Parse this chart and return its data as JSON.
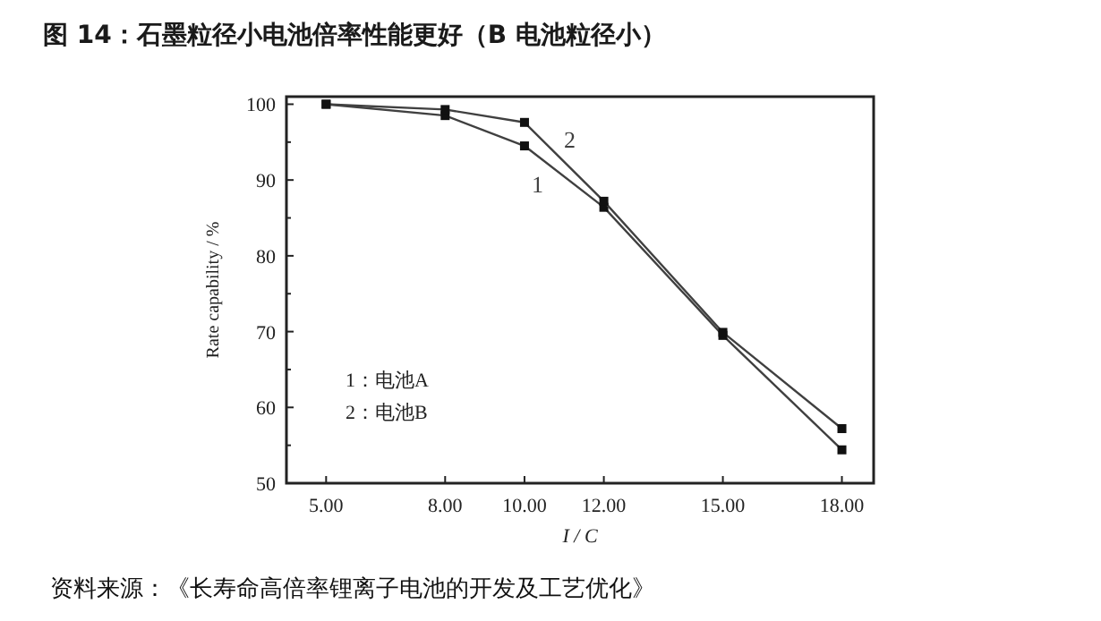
{
  "chart_data": {
    "type": "line",
    "title": "图 14：石墨粒径小电池倍率性能更好（B 电池粒径小）",
    "xlabel": "I / C",
    "ylabel": "Rate capability / %",
    "x": [
      5,
      8,
      10,
      12,
      15,
      18
    ],
    "series": [
      {
        "name": "1",
        "color": "#404040",
        "values": [
          100,
          98.5,
          94.5,
          86.4,
          69.5,
          54.4
        ]
      },
      {
        "name": "2",
        "color": "#404040",
        "values": [
          100,
          99.3,
          97.6,
          87.2,
          69.9,
          57.2
        ]
      }
    ],
    "xlim": [
      4,
      18.8
    ],
    "ylim": [
      50,
      101
    ],
    "xticks": [
      {
        "value": 5,
        "label": "5.00"
      },
      {
        "value": 8,
        "label": "8.00"
      },
      {
        "value": 10,
        "label": "10.00"
      },
      {
        "value": 12,
        "label": "12.00"
      },
      {
        "value": 15,
        "label": "15.00"
      },
      {
        "value": 18,
        "label": "18.00"
      }
    ],
    "yticks": [
      50,
      {
        "value": 55,
        "label": null
      },
      60,
      {
        "value": 65,
        "label": null
      },
      70,
      {
        "value": 75,
        "label": null
      },
      80,
      {
        "value": 85,
        "label": null
      },
      90,
      {
        "value": 95,
        "label": null
      },
      100
    ],
    "marker": "square",
    "line_style": "solid",
    "grid": false,
    "annotations": [
      "1：电池A",
      "2：电池B",
      "资料来源：《长寿命高倍率锂离子电池的开发及工艺优化》"
    ]
  }
}
